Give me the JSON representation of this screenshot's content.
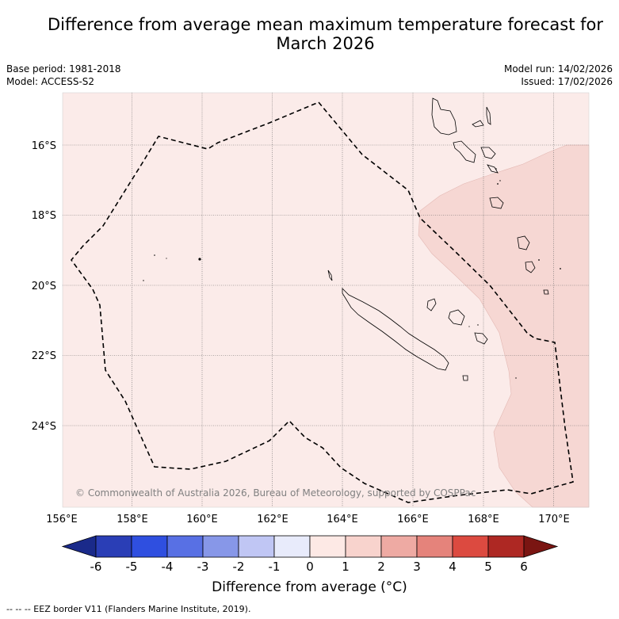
{
  "title": "Difference from average mean maximum temperature forecast for March 2026",
  "title_line1": "Difference from average mean maximum temperature forecast for",
  "title_line2": "March 2026",
  "meta_left": {
    "base_period": "Base period: 1981-2018",
    "model": "Model: ACCESS-S2"
  },
  "meta_right": {
    "model_run": "Model run: 14/02/2026",
    "issued": "Issued: 17/02/2026"
  },
  "map": {
    "lon_labels": [
      "156°E",
      "158°E",
      "160°E",
      "162°E",
      "164°E",
      "166°E",
      "168°E",
      "170°E"
    ],
    "lat_labels": [
      "16°S",
      "18°S",
      "20°S",
      "22°S",
      "24°S"
    ],
    "copyright": "© Commonwealth of Australia 2026, Bureau of Meteorology, supported by COSPPac",
    "colors": {
      "anom_0_1": "#fbebe9",
      "anom_1_2": "#f6d7d3",
      "coast": "#000000"
    }
  },
  "colorbar": {
    "title": "Difference from average (°C)",
    "tick_labels": [
      "-6",
      "-5",
      "-4",
      "-3",
      "-2",
      "-1",
      "0",
      "1",
      "2",
      "3",
      "4",
      "5",
      "6"
    ],
    "colors": [
      "#1a2a8a",
      "#2a3eb6",
      "#2f4fe0",
      "#5870e4",
      "#8797e8",
      "#c0c6f4",
      "#e8ebfb",
      "#fde9e5",
      "#f8d3cd",
      "#eeaaa3",
      "#e5837b",
      "#dc4a40",
      "#ae2823",
      "#7a1512"
    ]
  },
  "footer": "-- -- -- EEZ border V11 (Flanders Marine Institute, 2019)."
}
